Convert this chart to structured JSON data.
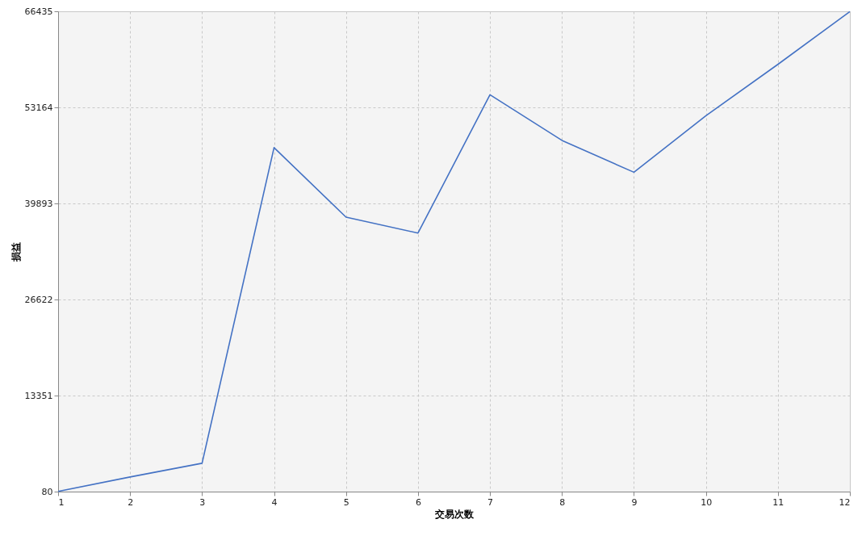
{
  "chart_data": {
    "type": "line",
    "xlabel": "交易次数",
    "ylabel": "损益",
    "x": [
      1,
      2,
      3,
      4,
      5,
      6,
      7,
      8,
      9,
      10,
      11,
      12
    ],
    "series": [
      {
        "color": "#4472c4",
        "values": [
          100,
          2100,
          4000,
          47600,
          38000,
          35800,
          54900,
          48600,
          44200,
          52000,
          59100,
          66400
        ]
      }
    ],
    "xlim": [
      1,
      12
    ],
    "xticks": [
      1,
      2,
      3,
      4,
      5,
      6,
      7,
      8,
      9,
      10,
      11,
      12
    ],
    "ylim": [
      80,
      66435
    ],
    "yticks": [
      80,
      13351,
      26622,
      39893,
      53164,
      66435
    ],
    "grid": true,
    "line_style": "solid",
    "marker": "none"
  }
}
